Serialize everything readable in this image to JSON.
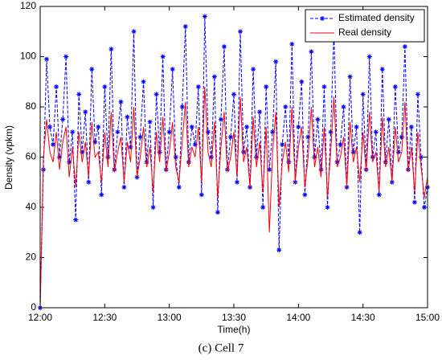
{
  "chart_data": {
    "type": "line",
    "xlabel": "Time(h)",
    "ylabel": "Density (vpkm)",
    "caption": "(c) Cell 7",
    "x": [
      0,
      1.5,
      3,
      4.5,
      6,
      7.5,
      9,
      10.5,
      12,
      13.5,
      15,
      16.5,
      18,
      19.5,
      21,
      22.5,
      24,
      25.5,
      27,
      28.5,
      30,
      31.5,
      33,
      34.5,
      36,
      37.5,
      39,
      40.5,
      42,
      43.5,
      45,
      46.5,
      48,
      49.5,
      51,
      52.5,
      54,
      55.5,
      57,
      58.5,
      60,
      61.5,
      63,
      64.5,
      66,
      67.5,
      69,
      70.5,
      72,
      73.5,
      75,
      76.5,
      78,
      79.5,
      81,
      82.5,
      84,
      85.5,
      87,
      88.5,
      90,
      91.5,
      93,
      94.5,
      96,
      97.5,
      99,
      100.5,
      102,
      103.5,
      105,
      106.5,
      108,
      109.5,
      111,
      112.5,
      114,
      115.5,
      117,
      118.5,
      120,
      121.5,
      123,
      124.5,
      126,
      127.5,
      129,
      130.5,
      132,
      133.5,
      135,
      136.5,
      138,
      139.5,
      141,
      142.5,
      144,
      145.5,
      147,
      148.5,
      150,
      151.5,
      153,
      154.5,
      156,
      157.5,
      159,
      160.5,
      162,
      163.5,
      165,
      166.5,
      168,
      169.5,
      171,
      172.5,
      174,
      175.5,
      177,
      178.5,
      180
    ],
    "series": [
      {
        "name": "Estimated density",
        "color": "#0000ff",
        "dashed": true,
        "marker": true,
        "values": [
          0,
          55,
          99,
          72,
          65,
          88,
          60,
          75,
          100,
          58,
          70,
          35,
          85,
          62,
          78,
          50,
          95,
          66,
          72,
          45,
          88,
          60,
          103,
          55,
          70,
          82,
          48,
          76,
          64,
          110,
          52,
          68,
          90,
          58,
          74,
          40,
          85,
          62,
          100,
          55,
          70,
          95,
          60,
          48,
          80,
          112,
          58,
          72,
          65,
          88,
          45,
          116,
          70,
          60,
          92,
          38,
          75,
          104,
          55,
          68,
          85,
          50,
          110,
          62,
          72,
          48,
          95,
          60,
          78,
          40,
          88,
          55,
          70,
          98,
          23,
          65,
          80,
          58,
          105,
          50,
          72,
          90,
          45,
          68,
          102,
          60,
          75,
          55,
          88,
          40,
          70,
          110,
          58,
          65,
          80,
          48,
          92,
          62,
          72,
          30,
          85,
          55,
          100,
          60,
          70,
          45,
          95,
          58,
          75,
          50,
          88,
          62,
          68,
          104,
          55,
          72,
          42,
          85,
          60,
          40,
          48
        ]
      },
      {
        "name": "Real density",
        "color": "#ff0000",
        "dashed": false,
        "marker": false,
        "values": [
          0,
          60,
          75,
          62,
          58,
          70,
          55,
          66,
          72,
          52,
          64,
          48,
          70,
          58,
          66,
          52,
          74,
          60,
          62,
          50,
          70,
          56,
          78,
          54,
          62,
          68,
          50,
          66,
          58,
          80,
          52,
          60,
          72,
          56,
          64,
          46,
          70,
          58,
          76,
          54,
          62,
          74,
          56,
          50,
          66,
          82,
          56,
          64,
          60,
          72,
          50,
          88,
          62,
          56,
          74,
          44,
          64,
          78,
          54,
          60,
          70,
          52,
          84,
          58,
          64,
          48,
          76,
          56,
          66,
          46,
          72,
          30,
          62,
          78,
          40,
          58,
          66,
          54,
          80,
          50,
          64,
          72,
          48,
          60,
          80,
          56,
          64,
          52,
          72,
          44,
          62,
          84,
          56,
          60,
          68,
          48,
          74,
          58,
          64,
          50,
          70,
          54,
          78,
          58,
          62,
          46,
          76,
          56,
          64,
          50,
          72,
          58,
          62,
          82,
          54,
          64,
          46,
          70,
          56,
          44,
          52
        ]
      }
    ],
    "xlim": [
      0,
      180
    ],
    "xticks": [
      {
        "value": 0,
        "label": "12:00"
      },
      {
        "value": 30,
        "label": "12:30"
      },
      {
        "value": 60,
        "label": "13:00"
      },
      {
        "value": 90,
        "label": "13:30"
      },
      {
        "value": 120,
        "label": "14:00"
      },
      {
        "value": 150,
        "label": "14:30"
      },
      {
        "value": 180,
        "label": "15:00"
      }
    ],
    "ylim": [
      0,
      120
    ],
    "yticks": [
      0,
      20,
      40,
      60,
      80,
      100,
      120
    ],
    "legend": "upper right"
  }
}
